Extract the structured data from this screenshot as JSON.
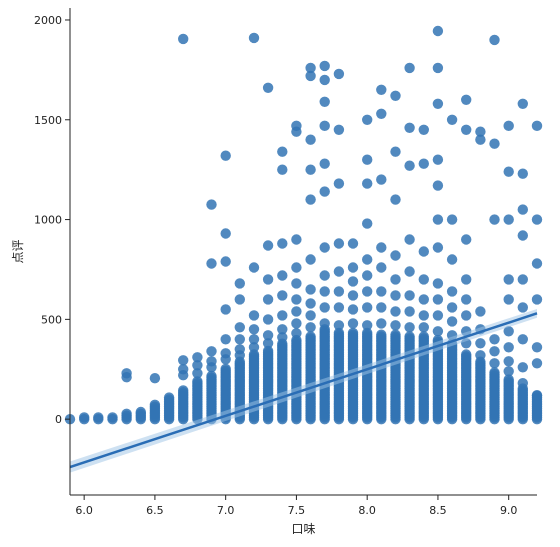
{
  "chart_data": {
    "type": "scatter",
    "title": "",
    "xlabel": "口味",
    "ylabel": "点评",
    "xlim": [
      5.9,
      9.2
    ],
    "ylim": [
      -380,
      2060
    ],
    "xticks": [
      6.0,
      6.5,
      7.0,
      7.5,
      8.0,
      8.5,
      9.0
    ],
    "xtick_labels": [
      "6.0",
      "6.5",
      "7.0",
      "7.5",
      "8.0",
      "8.5",
      "9.0"
    ],
    "yticks": [
      0,
      500,
      1000,
      1500,
      2000
    ],
    "ytick_labels": [
      "0",
      "500",
      "1000",
      "1500",
      "2000"
    ],
    "grid": false,
    "legend": "none",
    "spines": [
      "left",
      "bottom"
    ],
    "colors": {
      "points": "#3274b4",
      "line": "#2a6db5",
      "band": "#9ec4e6"
    },
    "regression": {
      "x": [
        5.9,
        9.2
      ],
      "y": [
        -240,
        530
      ]
    },
    "columns": [
      {
        "x": 5.9,
        "max": 5
      },
      {
        "x": 6.0,
        "max": 10
      },
      {
        "x": 6.1,
        "max": 12
      },
      {
        "x": 6.2,
        "max": 15
      },
      {
        "x": 6.3,
        "max": 30
      },
      {
        "x": 6.4,
        "max": 40
      },
      {
        "x": 6.5,
        "max": 80
      },
      {
        "x": 6.6,
        "max": 110
      },
      {
        "x": 6.7,
        "max": 150
      },
      {
        "x": 6.8,
        "max": 190
      },
      {
        "x": 6.9,
        "max": 220
      },
      {
        "x": 7.0,
        "max": 260
      },
      {
        "x": 7.1,
        "max": 290
      },
      {
        "x": 7.2,
        "max": 330
      },
      {
        "x": 7.3,
        "max": 350
      },
      {
        "x": 7.4,
        "max": 380
      },
      {
        "x": 7.5,
        "max": 400
      },
      {
        "x": 7.6,
        "max": 420
      },
      {
        "x": 7.7,
        "max": 450
      },
      {
        "x": 7.8,
        "max": 440
      },
      {
        "x": 7.9,
        "max": 440
      },
      {
        "x": 8.0,
        "max": 440
      },
      {
        "x": 8.1,
        "max": 430
      },
      {
        "x": 8.2,
        "max": 430
      },
      {
        "x": 8.3,
        "max": 420
      },
      {
        "x": 8.4,
        "max": 420
      },
      {
        "x": 8.5,
        "max": 400
      },
      {
        "x": 8.6,
        "max": 380
      },
      {
        "x": 8.7,
        "max": 330
      },
      {
        "x": 8.8,
        "max": 290
      },
      {
        "x": 8.9,
        "max": 240
      },
      {
        "x": 9.0,
        "max": 200
      },
      {
        "x": 9.1,
        "max": 160
      },
      {
        "x": 9.2,
        "max": 120
      }
    ],
    "points": [
      {
        "x": 6.3,
        "y": 210
      },
      {
        "x": 6.3,
        "y": 230
      },
      {
        "x": 6.5,
        "y": 205
      },
      {
        "x": 6.7,
        "y": 220
      },
      {
        "x": 6.7,
        "y": 250
      },
      {
        "x": 6.7,
        "y": 295
      },
      {
        "x": 6.7,
        "y": 1905
      },
      {
        "x": 6.8,
        "y": 230
      },
      {
        "x": 6.8,
        "y": 270
      },
      {
        "x": 6.8,
        "y": 310
      },
      {
        "x": 6.9,
        "y": 260
      },
      {
        "x": 6.9,
        "y": 290
      },
      {
        "x": 6.9,
        "y": 340
      },
      {
        "x": 6.9,
        "y": 780
      },
      {
        "x": 6.9,
        "y": 1075
      },
      {
        "x": 7.0,
        "y": 300
      },
      {
        "x": 7.0,
        "y": 330
      },
      {
        "x": 7.0,
        "y": 400
      },
      {
        "x": 7.0,
        "y": 550
      },
      {
        "x": 7.0,
        "y": 790
      },
      {
        "x": 7.0,
        "y": 930
      },
      {
        "x": 7.0,
        "y": 1320
      },
      {
        "x": 7.1,
        "y": 320
      },
      {
        "x": 7.1,
        "y": 350
      },
      {
        "x": 7.1,
        "y": 400
      },
      {
        "x": 7.1,
        "y": 460
      },
      {
        "x": 7.1,
        "y": 600
      },
      {
        "x": 7.1,
        "y": 680
      },
      {
        "x": 7.2,
        "y": 360
      },
      {
        "x": 7.2,
        "y": 400
      },
      {
        "x": 7.2,
        "y": 450
      },
      {
        "x": 7.2,
        "y": 520
      },
      {
        "x": 7.2,
        "y": 760
      },
      {
        "x": 7.2,
        "y": 1910
      },
      {
        "x": 7.3,
        "y": 380
      },
      {
        "x": 7.3,
        "y": 420
      },
      {
        "x": 7.3,
        "y": 500
      },
      {
        "x": 7.3,
        "y": 600
      },
      {
        "x": 7.3,
        "y": 700
      },
      {
        "x": 7.3,
        "y": 870
      },
      {
        "x": 7.3,
        "y": 1660
      },
      {
        "x": 7.4,
        "y": 410
      },
      {
        "x": 7.4,
        "y": 450
      },
      {
        "x": 7.4,
        "y": 520
      },
      {
        "x": 7.4,
        "y": 620
      },
      {
        "x": 7.4,
        "y": 720
      },
      {
        "x": 7.4,
        "y": 880
      },
      {
        "x": 7.4,
        "y": 1250
      },
      {
        "x": 7.4,
        "y": 1340
      },
      {
        "x": 7.5,
        "y": 430
      },
      {
        "x": 7.5,
        "y": 480
      },
      {
        "x": 7.5,
        "y": 540
      },
      {
        "x": 7.5,
        "y": 600
      },
      {
        "x": 7.5,
        "y": 680
      },
      {
        "x": 7.5,
        "y": 760
      },
      {
        "x": 7.5,
        "y": 900
      },
      {
        "x": 7.5,
        "y": 1440
      },
      {
        "x": 7.5,
        "y": 1470
      },
      {
        "x": 7.6,
        "y": 460
      },
      {
        "x": 7.6,
        "y": 520
      },
      {
        "x": 7.6,
        "y": 580
      },
      {
        "x": 7.6,
        "y": 650
      },
      {
        "x": 7.6,
        "y": 800
      },
      {
        "x": 7.6,
        "y": 1100
      },
      {
        "x": 7.6,
        "y": 1250
      },
      {
        "x": 7.6,
        "y": 1400
      },
      {
        "x": 7.6,
        "y": 1720
      },
      {
        "x": 7.6,
        "y": 1760
      },
      {
        "x": 7.7,
        "y": 480
      },
      {
        "x": 7.7,
        "y": 560
      },
      {
        "x": 7.7,
        "y": 640
      },
      {
        "x": 7.7,
        "y": 720
      },
      {
        "x": 7.7,
        "y": 860
      },
      {
        "x": 7.7,
        "y": 1140
      },
      {
        "x": 7.7,
        "y": 1280
      },
      {
        "x": 7.7,
        "y": 1470
      },
      {
        "x": 7.7,
        "y": 1590
      },
      {
        "x": 7.7,
        "y": 1700
      },
      {
        "x": 7.7,
        "y": 1770
      },
      {
        "x": 7.8,
        "y": 470
      },
      {
        "x": 7.8,
        "y": 560
      },
      {
        "x": 7.8,
        "y": 640
      },
      {
        "x": 7.8,
        "y": 740
      },
      {
        "x": 7.8,
        "y": 880
      },
      {
        "x": 7.8,
        "y": 1180
      },
      {
        "x": 7.8,
        "y": 1450
      },
      {
        "x": 7.8,
        "y": 1730
      },
      {
        "x": 7.9,
        "y": 480
      },
      {
        "x": 7.9,
        "y": 550
      },
      {
        "x": 7.9,
        "y": 620
      },
      {
        "x": 7.9,
        "y": 690
      },
      {
        "x": 7.9,
        "y": 760
      },
      {
        "x": 7.9,
        "y": 880
      },
      {
        "x": 8.0,
        "y": 470
      },
      {
        "x": 8.0,
        "y": 560
      },
      {
        "x": 8.0,
        "y": 640
      },
      {
        "x": 8.0,
        "y": 720
      },
      {
        "x": 8.0,
        "y": 800
      },
      {
        "x": 8.0,
        "y": 980
      },
      {
        "x": 8.0,
        "y": 1180
      },
      {
        "x": 8.0,
        "y": 1300
      },
      {
        "x": 8.0,
        "y": 1500
      },
      {
        "x": 8.1,
        "y": 480
      },
      {
        "x": 8.1,
        "y": 560
      },
      {
        "x": 8.1,
        "y": 640
      },
      {
        "x": 8.1,
        "y": 760
      },
      {
        "x": 8.1,
        "y": 860
      },
      {
        "x": 8.1,
        "y": 1200
      },
      {
        "x": 8.1,
        "y": 1530
      },
      {
        "x": 8.1,
        "y": 1650
      },
      {
        "x": 8.2,
        "y": 470
      },
      {
        "x": 8.2,
        "y": 540
      },
      {
        "x": 8.2,
        "y": 620
      },
      {
        "x": 8.2,
        "y": 700
      },
      {
        "x": 8.2,
        "y": 820
      },
      {
        "x": 8.2,
        "y": 1100
      },
      {
        "x": 8.2,
        "y": 1340
      },
      {
        "x": 8.2,
        "y": 1620
      },
      {
        "x": 8.3,
        "y": 460
      },
      {
        "x": 8.3,
        "y": 540
      },
      {
        "x": 8.3,
        "y": 620
      },
      {
        "x": 8.3,
        "y": 740
      },
      {
        "x": 8.3,
        "y": 900
      },
      {
        "x": 8.3,
        "y": 1270
      },
      {
        "x": 8.3,
        "y": 1460
      },
      {
        "x": 8.3,
        "y": 1760
      },
      {
        "x": 8.4,
        "y": 460
      },
      {
        "x": 8.4,
        "y": 520
      },
      {
        "x": 8.4,
        "y": 600
      },
      {
        "x": 8.4,
        "y": 700
      },
      {
        "x": 8.4,
        "y": 840
      },
      {
        "x": 8.4,
        "y": 1280
      },
      {
        "x": 8.4,
        "y": 1450
      },
      {
        "x": 8.5,
        "y": 440
      },
      {
        "x": 8.5,
        "y": 520
      },
      {
        "x": 8.5,
        "y": 600
      },
      {
        "x": 8.5,
        "y": 680
      },
      {
        "x": 8.5,
        "y": 860
      },
      {
        "x": 8.5,
        "y": 1000
      },
      {
        "x": 8.5,
        "y": 1170
      },
      {
        "x": 8.5,
        "y": 1300
      },
      {
        "x": 8.5,
        "y": 1580
      },
      {
        "x": 8.5,
        "y": 1760
      },
      {
        "x": 8.5,
        "y": 1945
      },
      {
        "x": 8.6,
        "y": 420
      },
      {
        "x": 8.6,
        "y": 490
      },
      {
        "x": 8.6,
        "y": 560
      },
      {
        "x": 8.6,
        "y": 640
      },
      {
        "x": 8.6,
        "y": 800
      },
      {
        "x": 8.6,
        "y": 1000
      },
      {
        "x": 8.6,
        "y": 1500
      },
      {
        "x": 8.7,
        "y": 380
      },
      {
        "x": 8.7,
        "y": 440
      },
      {
        "x": 8.7,
        "y": 520
      },
      {
        "x": 8.7,
        "y": 600
      },
      {
        "x": 8.7,
        "y": 700
      },
      {
        "x": 8.7,
        "y": 900
      },
      {
        "x": 8.7,
        "y": 1450
      },
      {
        "x": 8.7,
        "y": 1600
      },
      {
        "x": 8.8,
        "y": 320
      },
      {
        "x": 8.8,
        "y": 380
      },
      {
        "x": 8.8,
        "y": 450
      },
      {
        "x": 8.8,
        "y": 540
      },
      {
        "x": 8.8,
        "y": 1400
      },
      {
        "x": 8.8,
        "y": 1440
      },
      {
        "x": 8.9,
        "y": 280
      },
      {
        "x": 8.9,
        "y": 340
      },
      {
        "x": 8.9,
        "y": 400
      },
      {
        "x": 8.9,
        "y": 1000
      },
      {
        "x": 8.9,
        "y": 1380
      },
      {
        "x": 8.9,
        "y": 1900
      },
      {
        "x": 9.0,
        "y": 240
      },
      {
        "x": 9.0,
        "y": 290
      },
      {
        "x": 9.0,
        "y": 360
      },
      {
        "x": 9.0,
        "y": 440
      },
      {
        "x": 9.0,
        "y": 600
      },
      {
        "x": 9.0,
        "y": 700
      },
      {
        "x": 9.0,
        "y": 1000
      },
      {
        "x": 9.0,
        "y": 1240
      },
      {
        "x": 9.0,
        "y": 1470
      },
      {
        "x": 9.1,
        "y": 180
      },
      {
        "x": 9.1,
        "y": 260
      },
      {
        "x": 9.1,
        "y": 400
      },
      {
        "x": 9.1,
        "y": 560
      },
      {
        "x": 9.1,
        "y": 700
      },
      {
        "x": 9.1,
        "y": 920
      },
      {
        "x": 9.1,
        "y": 1050
      },
      {
        "x": 9.1,
        "y": 1230
      },
      {
        "x": 9.1,
        "y": 1580
      },
      {
        "x": 9.2,
        "y": 120
      },
      {
        "x": 9.2,
        "y": 280
      },
      {
        "x": 9.2,
        "y": 360
      },
      {
        "x": 9.2,
        "y": 600
      },
      {
        "x": 9.2,
        "y": 780
      },
      {
        "x": 9.2,
        "y": 1000
      },
      {
        "x": 9.2,
        "y": 1470
      }
    ]
  }
}
